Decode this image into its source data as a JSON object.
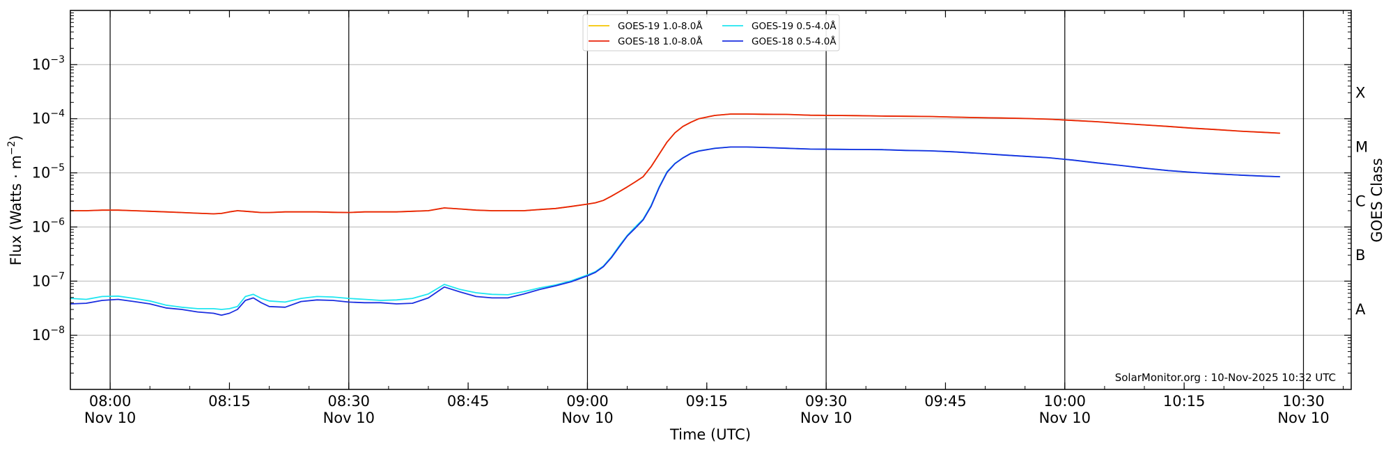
{
  "chart_data": {
    "type": "line",
    "xlabel": "Time (UTC)",
    "ylabel_prefix": "Flux (Watts · m",
    "ylabel_exp": "−2",
    "ylabel_suffix": ")",
    "right_axis_label": "GOES Class",
    "y_scale": "log",
    "ylim": [
      1e-09,
      0.01
    ],
    "xlim": [
      "07:55",
      "10:36"
    ],
    "grid": "horizontal gridlines at decades; vertical lines at half hours",
    "legend_position": "top-center",
    "credit": "SolarMonitor.org : 10-Nov-2025 10:32 UTC",
    "x_ticks": [
      {
        "time": "08:00",
        "label": "08:00",
        "sublabel": "Nov 10",
        "major": true
      },
      {
        "time": "08:15",
        "label": "08:15",
        "sublabel": "",
        "major": false
      },
      {
        "time": "08:30",
        "label": "08:30",
        "sublabel": "Nov 10",
        "major": true
      },
      {
        "time": "08:45",
        "label": "08:45",
        "sublabel": "",
        "major": false
      },
      {
        "time": "09:00",
        "label": "09:00",
        "sublabel": "Nov 10",
        "major": true
      },
      {
        "time": "09:15",
        "label": "09:15",
        "sublabel": "",
        "major": false
      },
      {
        "time": "09:30",
        "label": "09:30",
        "sublabel": "Nov 10",
        "major": true
      },
      {
        "time": "09:45",
        "label": "09:45",
        "sublabel": "",
        "major": false
      },
      {
        "time": "10:00",
        "label": "10:00",
        "sublabel": "Nov 10",
        "major": true
      },
      {
        "time": "10:15",
        "label": "10:15",
        "sublabel": "",
        "major": false
      },
      {
        "time": "10:30",
        "label": "10:30",
        "sublabel": "Nov 10",
        "major": true
      }
    ],
    "y_ticks": [
      {
        "value": 1e-08,
        "base": "10",
        "exp": "−8"
      },
      {
        "value": 1e-07,
        "base": "10",
        "exp": "−7"
      },
      {
        "value": 1e-06,
        "base": "10",
        "exp": "−6"
      },
      {
        "value": 1e-05,
        "base": "10",
        "exp": "−5"
      },
      {
        "value": 0.0001,
        "base": "10",
        "exp": "−4"
      },
      {
        "value": 0.001,
        "base": "10",
        "exp": "−3"
      }
    ],
    "goes_classes": [
      {
        "label": "A",
        "value": 3e-08
      },
      {
        "label": "B",
        "value": 3e-07
      },
      {
        "label": "C",
        "value": 3e-06
      },
      {
        "label": "M",
        "value": 3e-05
      },
      {
        "label": "X",
        "value": 0.0003
      }
    ],
    "x": [
      "07:55",
      "07:57",
      "07:59",
      "08:01",
      "08:03",
      "08:05",
      "08:07",
      "08:09",
      "08:11",
      "08:13",
      "08:14",
      "08:15",
      "08:16",
      "08:17",
      "08:18",
      "08:19",
      "08:20",
      "08:22",
      "08:24",
      "08:26",
      "08:28",
      "08:30",
      "08:32",
      "08:34",
      "08:36",
      "08:38",
      "08:40",
      "08:42",
      "08:44",
      "08:46",
      "08:48",
      "08:50",
      "08:52",
      "08:54",
      "08:56",
      "08:58",
      "09:00",
      "09:01",
      "09:02",
      "09:03",
      "09:04",
      "09:05",
      "09:06",
      "09:07",
      "09:08",
      "09:09",
      "09:10",
      "09:11",
      "09:12",
      "09:13",
      "09:14",
      "09:16",
      "09:18",
      "09:20",
      "09:22",
      "09:25",
      "09:28",
      "09:31",
      "09:34",
      "09:37",
      "09:40",
      "09:43",
      "09:46",
      "09:49",
      "09:52",
      "09:55",
      "09:58",
      "10:01",
      "10:04",
      "10:07",
      "10:10",
      "10:13",
      "10:16",
      "10:19",
      "10:22",
      "10:25",
      "10:27"
    ],
    "series": [
      {
        "name": "GOES-19 1.0-8.0Å",
        "color": "#f5c400",
        "values": [
          2e-06,
          2e-06,
          2.05e-06,
          2.05e-06,
          2e-06,
          1.95e-06,
          1.9e-06,
          1.85e-06,
          1.8e-06,
          1.75e-06,
          1.78e-06,
          1.9e-06,
          2e-06,
          1.95e-06,
          1.9e-06,
          1.85e-06,
          1.85e-06,
          1.9e-06,
          1.9e-06,
          1.9e-06,
          1.87e-06,
          1.85e-06,
          1.9e-06,
          1.9e-06,
          1.9e-06,
          1.95e-06,
          2e-06,
          2.25e-06,
          2.15e-06,
          2.05e-06,
          2e-06,
          2e-06,
          2e-06,
          2.1e-06,
          2.2e-06,
          2.4e-06,
          2.65e-06,
          2.8e-06,
          3.1e-06,
          3.7e-06,
          4.5e-06,
          5.5e-06,
          6.8e-06,
          8.5e-06,
          1.3e-05,
          2.2e-05,
          3.7e-05,
          5.5e-05,
          7.2e-05,
          8.6e-05,
          0.0001,
          0.000115,
          0.000122,
          0.000122,
          0.000121,
          0.00012,
          0.000116,
          0.000115,
          0.000114,
          0.000112,
          0.000111,
          0.00011,
          0.000107,
          0.000105,
          0.000103,
          0.000101,
          9.8e-05,
          9.3e-05,
          8.8e-05,
          8.2e-05,
          7.7e-05,
          7.2e-05,
          6.7e-05,
          6.3e-05,
          5.9e-05,
          5.6e-05,
          5.4e-05
        ]
      },
      {
        "name": "GOES-18 1.0-8.0Å",
        "color": "#e8220a",
        "values": [
          2e-06,
          2e-06,
          2.05e-06,
          2.05e-06,
          2e-06,
          1.95e-06,
          1.9e-06,
          1.85e-06,
          1.8e-06,
          1.75e-06,
          1.78e-06,
          1.9e-06,
          2e-06,
          1.95e-06,
          1.9e-06,
          1.85e-06,
          1.85e-06,
          1.9e-06,
          1.9e-06,
          1.9e-06,
          1.87e-06,
          1.85e-06,
          1.9e-06,
          1.9e-06,
          1.9e-06,
          1.95e-06,
          2e-06,
          2.25e-06,
          2.15e-06,
          2.05e-06,
          2e-06,
          2e-06,
          2e-06,
          2.1e-06,
          2.2e-06,
          2.4e-06,
          2.65e-06,
          2.8e-06,
          3.1e-06,
          3.7e-06,
          4.5e-06,
          5.5e-06,
          6.8e-06,
          8.5e-06,
          1.3e-05,
          2.2e-05,
          3.7e-05,
          5.5e-05,
          7.2e-05,
          8.6e-05,
          0.0001,
          0.000115,
          0.000122,
          0.000122,
          0.000121,
          0.00012,
          0.000116,
          0.000115,
          0.000114,
          0.000112,
          0.000111,
          0.00011,
          0.000107,
          0.000105,
          0.000103,
          0.000101,
          9.8e-05,
          9.3e-05,
          8.8e-05,
          8.2e-05,
          7.7e-05,
          7.2e-05,
          6.7e-05,
          6.3e-05,
          5.9e-05,
          5.6e-05,
          5.4e-05
        ]
      },
      {
        "name": "GOES-19 0.5-4.0Å",
        "color": "#1ee6f0",
        "values": [
          4.8e-08,
          4.6e-08,
          5.2e-08,
          5.3e-08,
          4.8e-08,
          4.3e-08,
          3.6e-08,
          3.3e-08,
          3.1e-08,
          3.1e-08,
          3e-08,
          3.1e-08,
          3.4e-08,
          5.2e-08,
          5.7e-08,
          4.8e-08,
          4.3e-08,
          4.1e-08,
          4.8e-08,
          5.2e-08,
          5.1e-08,
          4.8e-08,
          4.6e-08,
          4.4e-08,
          4.5e-08,
          4.8e-08,
          5.8e-08,
          8.7e-08,
          7e-08,
          6.1e-08,
          5.7e-08,
          5.6e-08,
          6.4e-08,
          7.5e-08,
          8.5e-08,
          1.02e-07,
          1.3e-07,
          1.5e-07,
          1.9e-07,
          2.8e-07,
          4.5e-07,
          7e-07,
          1e-06,
          1.4e-06,
          2.5e-06,
          5.5e-06,
          1.05e-05,
          1.5e-05,
          1.9e-05,
          2.3e-05,
          2.55e-05,
          2.85e-05,
          3e-05,
          3e-05,
          2.95e-05,
          2.85e-05,
          2.75e-05,
          2.72e-05,
          2.7e-05,
          2.68e-05,
          2.6e-05,
          2.55e-05,
          2.45e-05,
          2.3e-05,
          2.15e-05,
          2.02e-05,
          1.9e-05,
          1.72e-05,
          1.53e-05,
          1.37e-05,
          1.22e-05,
          1.1e-05,
          1.02e-05,
          9.6e-06,
          9.1e-06,
          8.7e-06,
          8.5e-06
        ]
      },
      {
        "name": "GOES-18 0.5-4.0Å",
        "color": "#1a2ee0",
        "values": [
          3.8e-08,
          3.9e-08,
          4.4e-08,
          4.6e-08,
          4.2e-08,
          3.8e-08,
          3.2e-08,
          3e-08,
          2.7e-08,
          2.55e-08,
          2.35e-08,
          2.55e-08,
          3e-08,
          4.4e-08,
          4.9e-08,
          4e-08,
          3.4e-08,
          3.3e-08,
          4.2e-08,
          4.5e-08,
          4.4e-08,
          4.1e-08,
          4e-08,
          4e-08,
          3.8e-08,
          3.9e-08,
          4.9e-08,
          7.8e-08,
          6.3e-08,
          5.2e-08,
          4.9e-08,
          4.9e-08,
          5.8e-08,
          7e-08,
          8.2e-08,
          9.8e-08,
          1.25e-07,
          1.45e-07,
          1.85e-07,
          2.7e-07,
          4.3e-07,
          6.8e-07,
          9.5e-07,
          1.35e-06,
          2.4e-06,
          5.3e-06,
          1.02e-05,
          1.48e-05,
          1.88e-05,
          2.28e-05,
          2.52e-05,
          2.83e-05,
          3e-05,
          3e-05,
          2.95e-05,
          2.85e-05,
          2.75e-05,
          2.72e-05,
          2.7e-05,
          2.68e-05,
          2.6e-05,
          2.55e-05,
          2.45e-05,
          2.3e-05,
          2.15e-05,
          2.02e-05,
          1.9e-05,
          1.72e-05,
          1.53e-05,
          1.37e-05,
          1.22e-05,
          1.1e-05,
          1.02e-05,
          9.6e-06,
          9.1e-06,
          8.7e-06,
          8.5e-06
        ]
      }
    ]
  }
}
